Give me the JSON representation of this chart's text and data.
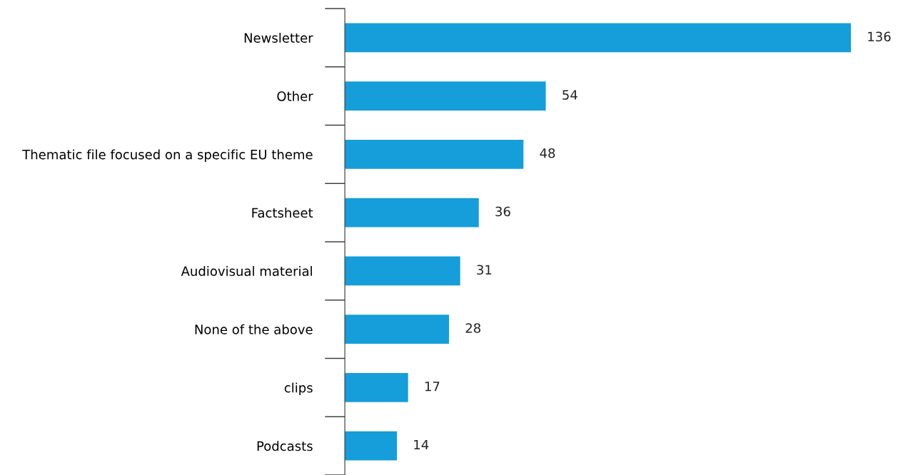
{
  "chart_data": {
    "type": "bar",
    "orientation": "horizontal",
    "categories": [
      "Newsletter",
      "Other",
      "Thematic file focused on a specific EU theme",
      "Factsheet",
      "Audiovisual material",
      "None of the above",
      "clips",
      "Podcasts"
    ],
    "values": [
      136,
      54,
      48,
      36,
      31,
      28,
      17,
      14
    ],
    "color": "#159ed9",
    "data_labels": true,
    "tick_labels": "y"
  }
}
